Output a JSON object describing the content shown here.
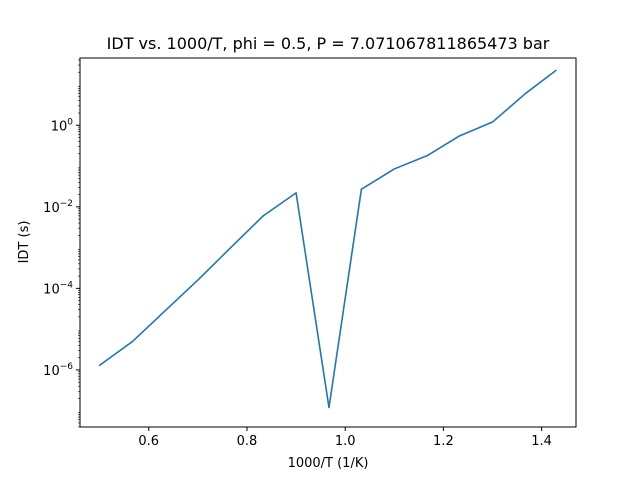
{
  "chart_data": {
    "type": "line",
    "title": "IDT vs. 1000/T, phi = 0.5, P = 7.071067811865473 bar",
    "xlabel": "1000/T (1/K)",
    "ylabel": "IDT (s)",
    "xlim": [
      0.46,
      1.47
    ],
    "ylim_log10": [
      -7.4,
      1.65
    ],
    "yscale": "log",
    "grid": false,
    "x_ticks": [
      {
        "value": 0.6,
        "label": "0.6"
      },
      {
        "value": 0.8,
        "label": "0.8"
      },
      {
        "value": 1.0,
        "label": "1.0"
      },
      {
        "value": 1.2,
        "label": "1.2"
      },
      {
        "value": 1.4,
        "label": "1.4"
      }
    ],
    "y_ticks": [
      {
        "exp": -6,
        "base": "10",
        "sup": "−6"
      },
      {
        "exp": -4,
        "base": "10",
        "sup": "−4"
      },
      {
        "exp": -2,
        "base": "10",
        "sup": "−2"
      },
      {
        "exp": 0,
        "base": "10",
        "sup": "0"
      }
    ],
    "series": [
      {
        "color": "#1f77b4",
        "x": [
          0.5,
          0.567,
          0.633,
          0.7,
          0.767,
          0.833,
          0.9,
          0.967,
          1.033,
          1.1,
          1.167,
          1.233,
          1.3,
          1.367,
          1.429
        ],
        "y": [
          1.3e-06,
          5e-06,
          2.8e-05,
          0.00016,
          0.001,
          0.006,
          0.022,
          1.2e-07,
          0.027,
          0.085,
          0.18,
          0.55,
          1.2,
          6.0,
          22.0
        ]
      }
    ]
  }
}
